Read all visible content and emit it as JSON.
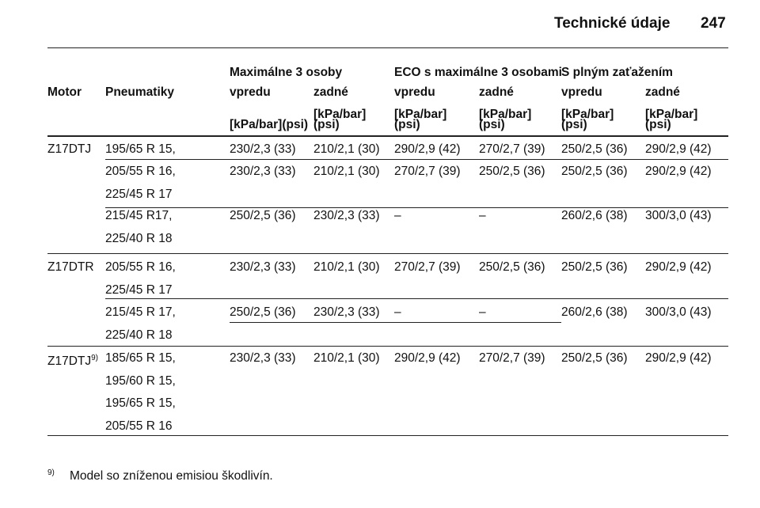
{
  "header": {
    "title": "Technické údaje",
    "page": "247"
  },
  "table": {
    "group_headers": [
      "Maximálne 3 osoby",
      "ECO s maximálne 3 osobami",
      "S plným zaťažením"
    ],
    "columns": [
      "Motor",
      "Pneumatiky",
      "vpredu",
      "zadné",
      "vpredu",
      "zadné",
      "vpredu",
      "zadné"
    ],
    "units": [
      [
        "[kPa/bar](psi)"
      ],
      [
        "[kPa/bar]",
        "(psi)"
      ],
      [
        "[kPa/bar]",
        "(psi)"
      ],
      [
        "[kPa/bar]",
        "(psi)"
      ],
      [
        "[kPa/bar]",
        "(psi)"
      ],
      [
        "[kPa/bar]",
        "(psi)"
      ]
    ],
    "rows": [
      {
        "motor": "Z17DTJ",
        "tires": [
          "195/65 R 15,"
        ],
        "values": [
          "230/2,3 (33)",
          "210/2,1 (30)",
          "290/2,9 (42)",
          "270/2,7 (39)",
          "250/2,5 (36)",
          "290/2,9 (42)"
        ]
      },
      {
        "tires": [
          "205/55 R 16,",
          "225/45 R 17"
        ],
        "values": [
          "230/2,3 (33)",
          "210/2,1 (30)",
          "270/2,7 (39)",
          "250/2,5 (36)",
          "250/2,5 (36)",
          "290/2,9 (42)"
        ]
      },
      {
        "tires": [
          "215/45 R17,",
          "225/40 R 18"
        ],
        "values": [
          "250/2,5 (36)",
          "230/2,3 (33)",
          "–",
          "–",
          "260/2,6 (38)",
          "300/3,0 (43)"
        ]
      },
      {
        "motor": "Z17DTR",
        "tires": [
          "205/55 R 16,",
          "225/45 R 17"
        ],
        "values": [
          "230/2,3 (33)",
          "210/2,1 (30)",
          "270/2,7 (39)",
          "250/2,5 (36)",
          "250/2,5 (36)",
          "290/2,9 (42)"
        ]
      },
      {
        "tires": [
          "215/45 R 17,",
          "225/40 R 18"
        ],
        "values": [
          "250/2,5 (36)",
          "230/2,3 (33)",
          "–",
          "–",
          "260/2,6 (38)",
          "300/3,0 (43)"
        ]
      },
      {
        "motor": "Z17DTJ",
        "motor_sup": "9)",
        "tires": [
          "185/65 R 15,",
          "195/60 R 15,",
          "195/65 R 15,",
          "205/55 R 16"
        ],
        "values": [
          "230/2,3 (33)",
          "210/2,1 (30)",
          "290/2,9 (42)",
          "270/2,7 (39)",
          "250/2,5 (36)",
          "290/2,9 (42)"
        ]
      }
    ]
  },
  "footnote": {
    "mark": "9)",
    "text": "Model so zníženou emisiou škodlivín."
  }
}
